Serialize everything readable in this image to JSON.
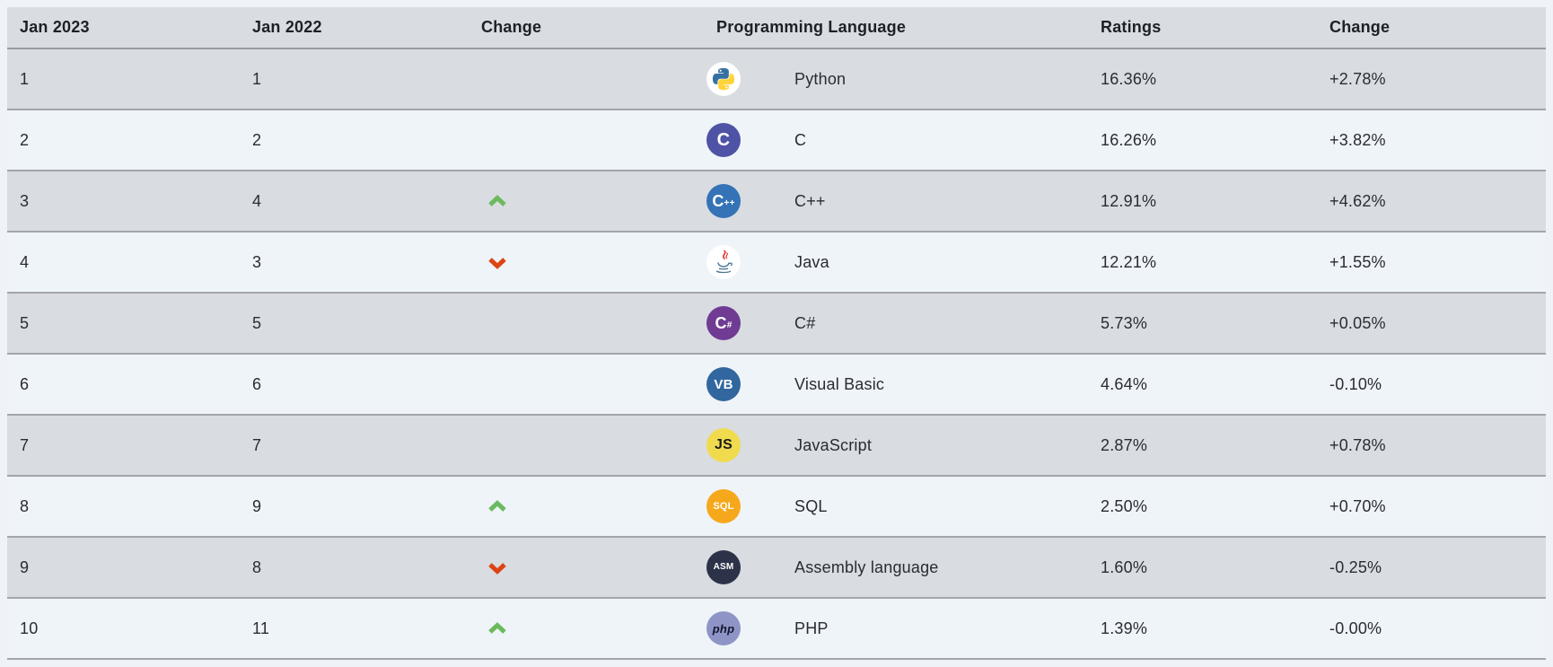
{
  "table": {
    "headers": {
      "col_2023": "Jan 2023",
      "col_2022": "Jan 2022",
      "col_rank_change": "Change",
      "col_language": "Programming Language",
      "col_ratings": "Ratings",
      "col_rating_change": "Change"
    },
    "rows": [
      {
        "rank_2023": "1",
        "rank_2022": "1",
        "rank_change": "none",
        "icon": "python",
        "language": "Python",
        "ratings": "16.36%",
        "change": "+2.78%"
      },
      {
        "rank_2023": "2",
        "rank_2022": "2",
        "rank_change": "none",
        "icon": "c",
        "language": "C",
        "ratings": "16.26%",
        "change": "+3.82%"
      },
      {
        "rank_2023": "3",
        "rank_2022": "4",
        "rank_change": "up",
        "icon": "cpp",
        "language": "C++",
        "ratings": "12.91%",
        "change": "+4.62%"
      },
      {
        "rank_2023": "4",
        "rank_2022": "3",
        "rank_change": "down",
        "icon": "java",
        "language": "Java",
        "ratings": "12.21%",
        "change": "+1.55%"
      },
      {
        "rank_2023": "5",
        "rank_2022": "5",
        "rank_change": "none",
        "icon": "csharp",
        "language": "C#",
        "ratings": "5.73%",
        "change": "+0.05%"
      },
      {
        "rank_2023": "6",
        "rank_2022": "6",
        "rank_change": "none",
        "icon": "vb",
        "language": "Visual Basic",
        "ratings": "4.64%",
        "change": "-0.10%"
      },
      {
        "rank_2023": "7",
        "rank_2022": "7",
        "rank_change": "none",
        "icon": "js",
        "language": "JavaScript",
        "ratings": "2.87%",
        "change": "+0.78%"
      },
      {
        "rank_2023": "8",
        "rank_2022": "9",
        "rank_change": "up",
        "icon": "sql",
        "language": "SQL",
        "ratings": "2.50%",
        "change": "+0.70%"
      },
      {
        "rank_2023": "9",
        "rank_2022": "8",
        "rank_change": "down",
        "icon": "asm",
        "language": "Assembly language",
        "ratings": "1.60%",
        "change": "-0.25%"
      },
      {
        "rank_2023": "10",
        "rank_2022": "11",
        "rank_change": "up",
        "icon": "php",
        "language": "PHP",
        "ratings": "1.39%",
        "change": "-0.00%"
      }
    ]
  },
  "icons": {
    "python": {
      "type": "svg-python",
      "bg": "#ffffff"
    },
    "c": {
      "type": "badge",
      "label": "C",
      "bg": "#4f53a5",
      "fg": "#ffffff",
      "size": 20
    },
    "cpp": {
      "type": "badge",
      "label": "C",
      "sub": "++",
      "bg": "#3473b6",
      "fg": "#ffffff",
      "size": 18
    },
    "java": {
      "type": "svg-java",
      "bg": "#ffffff"
    },
    "csharp": {
      "type": "badge",
      "label": "C",
      "sub": "#",
      "bg": "#6f3b93",
      "fg": "#ffffff",
      "size": 18
    },
    "vb": {
      "type": "badge",
      "label": "VB",
      "bg": "#31679e",
      "fg": "#ffffff",
      "size": 15
    },
    "js": {
      "type": "badge",
      "label": "JS",
      "bg": "#f0db4f",
      "fg": "#1b1b1b",
      "size": 16
    },
    "sql": {
      "type": "badge",
      "label": "SQL",
      "bg": "#f6a81c",
      "fg": "#ffffff",
      "size": 11
    },
    "asm": {
      "type": "badge",
      "label": "ASM",
      "bg": "#2c3349",
      "fg": "#ffffff",
      "size": 10
    },
    "php": {
      "type": "badge",
      "label": "php",
      "bg": "#8e95c6",
      "fg": "#13162e",
      "size": 13,
      "italic": true
    }
  },
  "colors": {
    "page_background": "#eff3f8",
    "row_gray": "#d9dce0",
    "row_light": "#eff4f9",
    "row_border": "#a2a6ab",
    "header_text": "#1d2025",
    "cell_text": "#292c31",
    "up_arrow": "#6cba5e",
    "down_arrow": "#dc4414",
    "python_blue": "#3771a1",
    "python_yellow": "#ffd43b",
    "java_red": "#e02d2d",
    "java_blue": "#4e7896"
  }
}
